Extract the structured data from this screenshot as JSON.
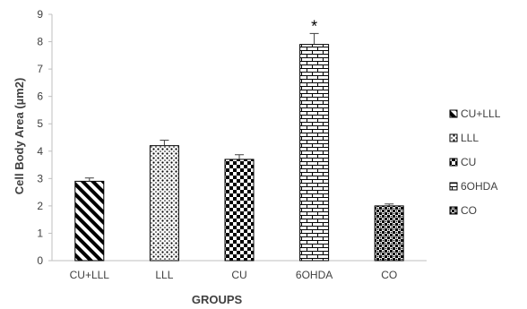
{
  "chart_data": {
    "type": "bar",
    "title": "",
    "xlabel": "GROUPS",
    "ylabel": "Cell Body Area (µm2)",
    "ylim": [
      0,
      9
    ],
    "yticks": [
      0,
      1,
      2,
      3,
      4,
      5,
      6,
      7,
      8,
      9
    ],
    "grid": false,
    "legend_position": "right",
    "categories": [
      "CU+LLL",
      "LLL",
      "CU",
      "6OHDA",
      "CO"
    ],
    "values": [
      2.9,
      4.2,
      3.7,
      7.9,
      2.0
    ],
    "errors": [
      0.12,
      0.2,
      0.17,
      0.4,
      0.07
    ],
    "patterns": [
      "diagonal-stripes",
      "dots",
      "checkerboard",
      "brick",
      "small-checker"
    ],
    "annotations": [
      {
        "category": "6OHDA",
        "text": "*"
      }
    ],
    "legend": [
      "CU+LLL",
      "LLL",
      "CU",
      "6OHDA",
      "CO"
    ],
    "colors": {
      "bar_ink": "#000000",
      "axis": "#bfbfbf",
      "text": "#404040"
    }
  }
}
